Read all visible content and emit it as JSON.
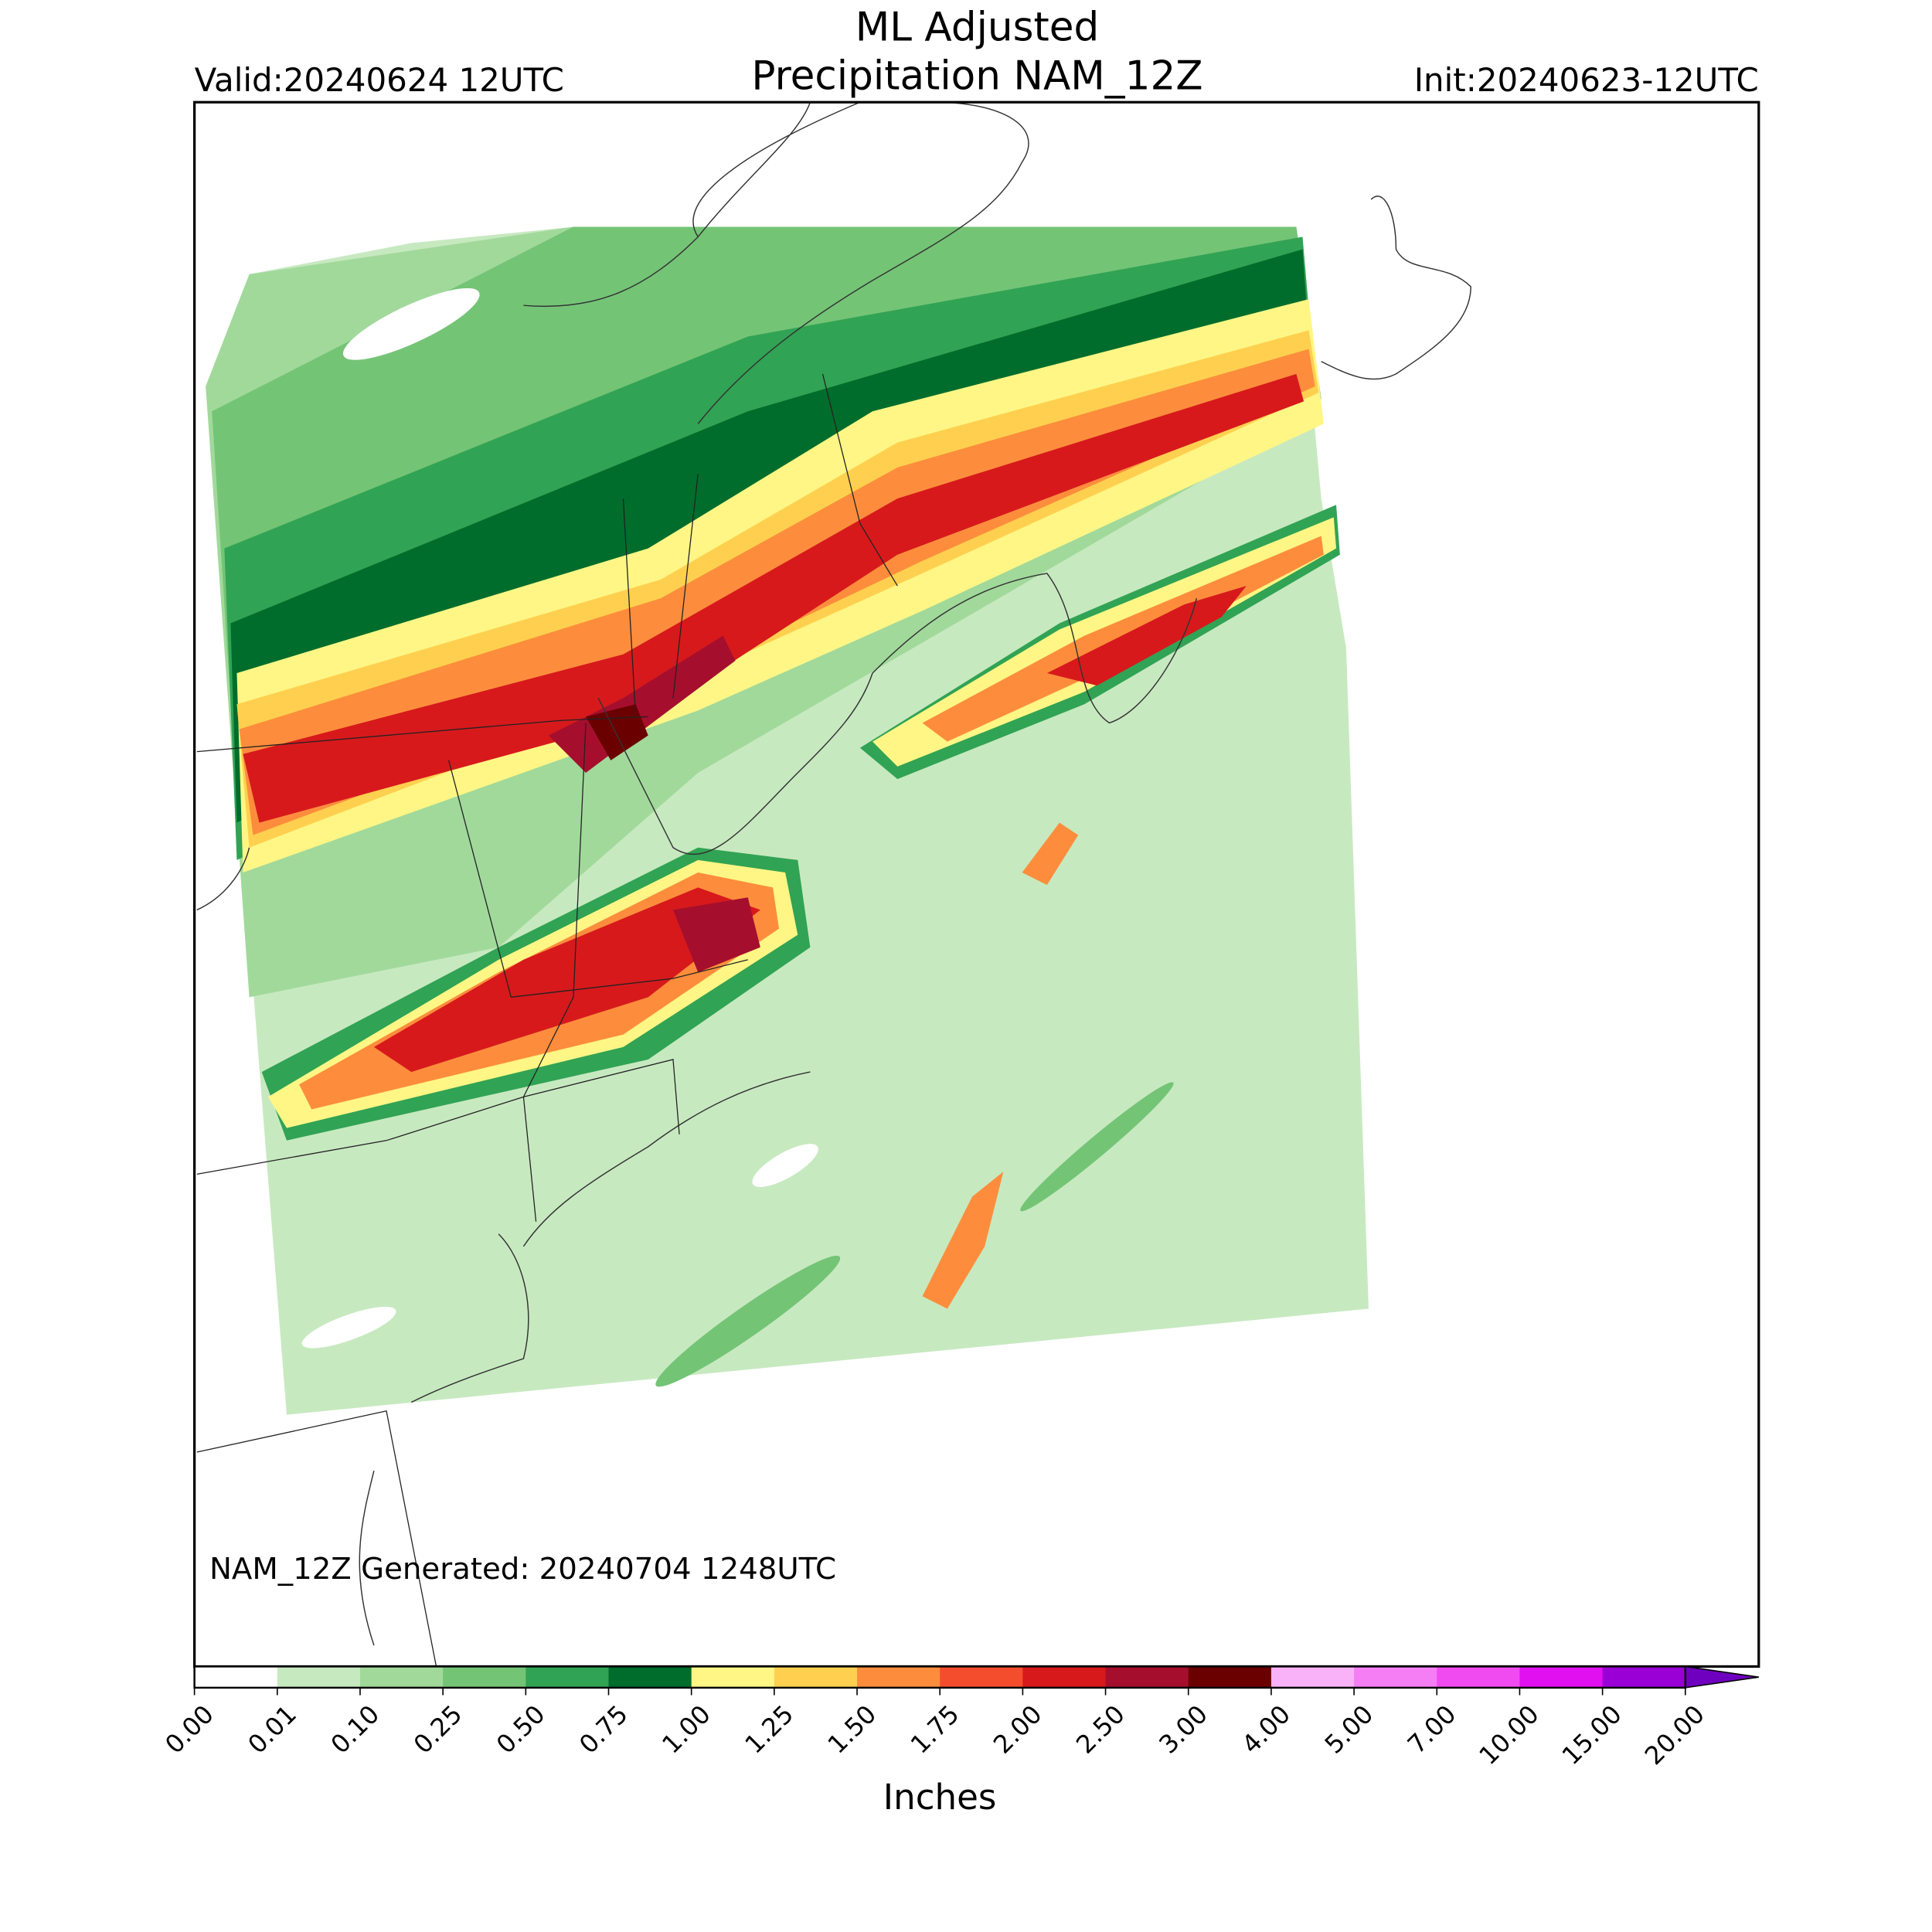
{
  "header": {
    "title_lines": [
      "ML Adjusted",
      "Precipitation NAM_12Z"
    ],
    "valid": "Valid:20240624 12UTC",
    "init": "Init:20240623-12UTC"
  },
  "map": {
    "annotation": "NAM_12Z Generated: 20240704 1248UTC"
  },
  "colorbar": {
    "label": "Inches",
    "ticks": [
      {
        "value": 0,
        "label": "0.00"
      },
      {
        "value": 0.01,
        "label": "0.01"
      },
      {
        "value": 0.1,
        "label": "0.10"
      },
      {
        "value": 0.25,
        "label": "0.25"
      },
      {
        "value": 0.5,
        "label": "0.50"
      },
      {
        "value": 0.75,
        "label": "0.75"
      },
      {
        "value": 1,
        "label": "1.00"
      },
      {
        "value": 1.25,
        "label": "1.25"
      },
      {
        "value": 1.5,
        "label": "1.50"
      },
      {
        "value": 1.75,
        "label": "1.75"
      },
      {
        "value": 2,
        "label": "2.00"
      },
      {
        "value": 2.5,
        "label": "2.50"
      },
      {
        "value": 3,
        "label": "3.00"
      },
      {
        "value": 4,
        "label": "4.00"
      },
      {
        "value": 5,
        "label": "5.00"
      },
      {
        "value": 7,
        "label": "7.00"
      },
      {
        "value": 10,
        "label": "10.00"
      },
      {
        "value": 15,
        "label": "15.00"
      },
      {
        "value": 20,
        "label": "20.00"
      }
    ],
    "colors": [
      "#ffffff",
      "#c7e9c0",
      "#a1d99b",
      "#74c476",
      "#31a354",
      "#006d2c",
      "#fff685",
      "#ffd04f",
      "#fd8d3c",
      "#f44d2e",
      "#d7191c",
      "#a50f2d",
      "#6b0000",
      "#f9b2f7",
      "#f57ef5",
      "#f04bf0",
      "#e010f0",
      "#9a00d6",
      "#7000c0"
    ],
    "extend": "max"
  }
}
